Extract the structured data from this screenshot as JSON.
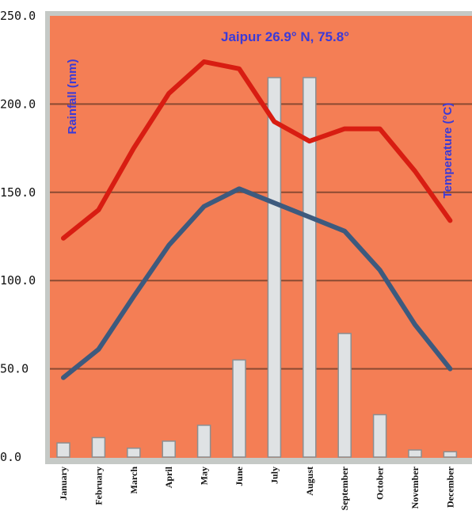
{
  "chart_data": {
    "type": "bar+line",
    "title": "Jaipur 26.9° N, 75.8°",
    "ylabel_left": "Rainfall (mm)",
    "ylabel_right": "Temperature (°C)",
    "ylim": [
      0,
      250
    ],
    "yticks": [
      "0.0",
      "50.0",
      "100.0",
      "150.0",
      "200.0",
      "250.0"
    ],
    "categories": [
      "January",
      "February",
      "March",
      "April",
      "May",
      "June",
      "July",
      "August",
      "September",
      "October",
      "November",
      "December"
    ],
    "rainfall": [
      8,
      11,
      5,
      9,
      18,
      55,
      215,
      215,
      70,
      24,
      4,
      3
    ],
    "max_temp_line": [
      124,
      140,
      175,
      206,
      224,
      220,
      190,
      179,
      186,
      186,
      162,
      134
    ],
    "min_temp_line": [
      45,
      61,
      91,
      120,
      142,
      152,
      144,
      136,
      128,
      106,
      75,
      50
    ],
    "colors": {
      "plot_bg": "#f47e55",
      "frame_bg": "#c5c9c6",
      "bar_fill": "#dfe2e4",
      "bar_stroke": "#8a8f92",
      "max_line": "#d81d12",
      "min_line": "#3d5a7e",
      "grid": "#8a4a32",
      "label_blue": "#3a3ad8"
    }
  }
}
